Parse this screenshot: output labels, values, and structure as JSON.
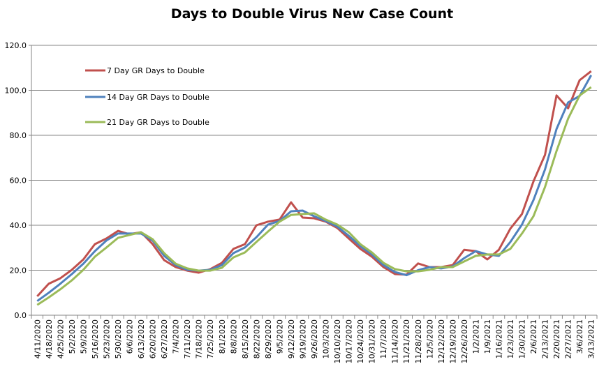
{
  "chart_data": {
    "type": "line",
    "title": "Days to Double Virus New Case Count",
    "xlabel": "",
    "ylabel": "",
    "ylim": [
      0,
      120
    ],
    "yticks": [
      "0.0",
      "20.0",
      "40.0",
      "60.0",
      "80.0",
      "100.0",
      "120.0"
    ],
    "grid": true,
    "legend_position": "top-left",
    "categories": [
      "4/11/2020",
      "4/18/2020",
      "4/25/2020",
      "5/2/2020",
      "5/9/2020",
      "5/16/2020",
      "5/23/2020",
      "5/30/2020",
      "6/6/2020",
      "6/13/2020",
      "6/20/2020",
      "6/27/2020",
      "7/4/2020",
      "7/11/2020",
      "7/18/2020",
      "7/25/2020",
      "8/1/2020",
      "8/8/2020",
      "8/15/2020",
      "8/22/2020",
      "8/29/2020",
      "9/5/2020",
      "9/12/2020",
      "9/19/2020",
      "9/26/2020",
      "10/3/2020",
      "10/10/2020",
      "10/17/2020",
      "10/24/2020",
      "10/31/2020",
      "11/7/2020",
      "11/14/2020",
      "11/21/2020",
      "11/28/2020",
      "12/5/2020",
      "12/12/2020",
      "12/19/2020",
      "12/26/2020",
      "1/2/2021",
      "1/9/2021",
      "1/16/2021",
      "1/23/2021",
      "1/30/2021",
      "2/6/2021",
      "2/13/2021",
      "2/20/2021",
      "2/27/2021",
      "3/6/2021",
      "3/13/2021"
    ],
    "series": [
      {
        "name": "7 Day GR Days to Double",
        "color": "#C0504D",
        "values": [
          8.4,
          14.0,
          16.4,
          20.2,
          24.8,
          31.6,
          34.1,
          37.5,
          36.0,
          36.9,
          31.6,
          24.5,
          21.4,
          19.8,
          18.9,
          20.5,
          23.3,
          29.5,
          31.6,
          40.0,
          41.6,
          42.5,
          50.2,
          43.4,
          43.1,
          41.6,
          38.8,
          34.1,
          29.5,
          26.0,
          21.4,
          18.3,
          18.0,
          23.0,
          21.4,
          21.4,
          22.3,
          29.1,
          28.5,
          24.8,
          29.1,
          38.5,
          45.0,
          59.5,
          71.3,
          97.7,
          92.0,
          104.5,
          108.5
        ]
      },
      {
        "name": "14 Day GR Days to Double",
        "color": "#4F81BD",
        "values": [
          6.3,
          10.0,
          14.0,
          18.3,
          22.9,
          28.5,
          33.2,
          36.3,
          36.3,
          36.3,
          33.2,
          26.4,
          22.3,
          20.2,
          19.8,
          20.2,
          22.3,
          27.6,
          30.1,
          34.7,
          40.3,
          41.9,
          46.2,
          46.5,
          44.0,
          41.9,
          39.4,
          35.3,
          30.7,
          27.0,
          22.3,
          19.2,
          17.8,
          20.0,
          21.4,
          20.8,
          21.7,
          25.4,
          28.5,
          27.0,
          26.4,
          32.6,
          40.3,
          51.2,
          64.8,
          82.8,
          94.6,
          97.5,
          106.7
        ]
      },
      {
        "name": "21 Day GR Days to Double",
        "color": "#9BBB59",
        "values": [
          4.6,
          7.9,
          11.5,
          15.5,
          20.2,
          26.0,
          30.1,
          34.4,
          35.7,
          36.9,
          33.8,
          27.6,
          22.9,
          20.8,
          19.8,
          19.8,
          21.1,
          25.7,
          27.9,
          32.6,
          37.2,
          41.6,
          44.6,
          45.0,
          45.3,
          42.5,
          40.3,
          36.9,
          31.6,
          27.9,
          23.3,
          20.5,
          19.5,
          19.5,
          20.2,
          21.4,
          21.4,
          23.9,
          26.4,
          27.0,
          27.0,
          29.5,
          36.3,
          44.0,
          57.0,
          73.0,
          87.4,
          97.7,
          101.4
        ]
      }
    ]
  }
}
